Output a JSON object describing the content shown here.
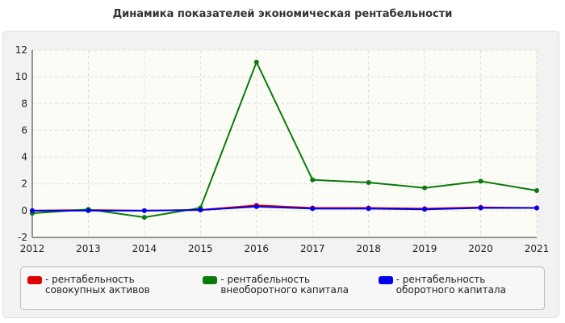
{
  "chart_data": {
    "type": "line",
    "title": "Динамика показателей экономическая рентабельности",
    "categories": [
      "2012",
      "2013",
      "2014",
      "2015",
      "2016",
      "2017",
      "2018",
      "2019",
      "2020",
      "2021"
    ],
    "series": [
      {
        "name": "- рентабельность совокупных активов",
        "color": "#e00000",
        "values": [
          0.0,
          0.05,
          0.0,
          0.05,
          0.4,
          0.2,
          0.2,
          0.15,
          0.25,
          0.2
        ]
      },
      {
        "name": "- рентабельность внеоборотного капитала",
        "color": "#0a7a0a",
        "values": [
          -0.2,
          0.1,
          -0.5,
          0.2,
          11.1,
          2.3,
          2.1,
          1.7,
          2.2,
          1.5
        ]
      },
      {
        "name": "- рентабельность оборотного капитала",
        "color": "#0000ee",
        "values": [
          0.0,
          0.0,
          0.0,
          0.05,
          0.3,
          0.15,
          0.15,
          0.1,
          0.2,
          0.2
        ]
      }
    ],
    "ylim": [
      -2,
      12
    ],
    "yticks": [
      -2,
      0,
      2,
      4,
      6,
      8,
      10,
      12
    ],
    "grid": true
  }
}
